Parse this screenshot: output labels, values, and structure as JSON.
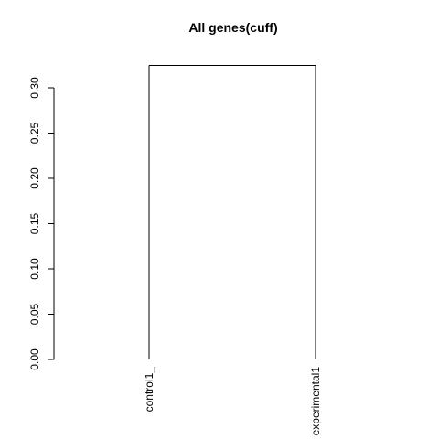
{
  "chart_data": {
    "type": "dendrogram",
    "title": "All genes(cuff)",
    "xlabel": "",
    "ylabel": "",
    "ylim": [
      0,
      0.3
    ],
    "yticks": [
      {
        "value": 0.0,
        "label": "0.00"
      },
      {
        "value": 0.05,
        "label": "0.05"
      },
      {
        "value": 0.1,
        "label": "0.10"
      },
      {
        "value": 0.15,
        "label": "0.15"
      },
      {
        "value": 0.2,
        "label": "0.20"
      },
      {
        "value": 0.25,
        "label": "0.25"
      },
      {
        "value": 0.3,
        "label": "0.30"
      }
    ],
    "leaves": [
      "control1_",
      "experimental1"
    ],
    "merges": [
      {
        "left": "control1_",
        "right": "experimental1",
        "height": 0.325
      }
    ],
    "line_color": "#000000"
  }
}
